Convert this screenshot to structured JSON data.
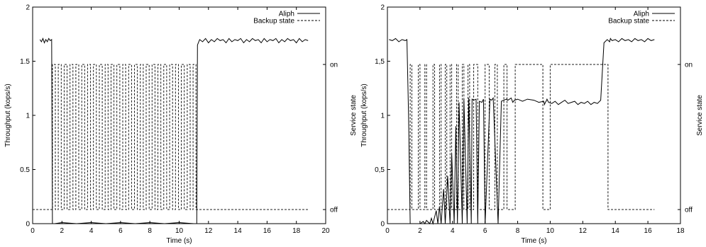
{
  "chart_data": [
    {
      "type": "line",
      "title": "",
      "xlabel": "Time (s)",
      "ylabel": "Throughput (kops/s)",
      "y2label": "Service state",
      "xlim": [
        0,
        20
      ],
      "ylim": [
        0,
        2
      ],
      "xticks": [
        0,
        2,
        4,
        6,
        8,
        10,
        12,
        14,
        16,
        18,
        20
      ],
      "yticks": [
        0,
        0.5,
        1,
        1.5,
        2
      ],
      "ytick_labels": [
        "0",
        "0.5",
        "1",
        "1.5",
        "2"
      ],
      "y2ticks": [
        {
          "label": "on",
          "y": 1.47
        },
        {
          "label": "off",
          "y": 0.13
        }
      ],
      "legend_position": "top-right",
      "series": [
        {
          "name": "Aliph",
          "style": "solid",
          "x": [
            0.5,
            0.6,
            0.7,
            0.8,
            0.9,
            1.0,
            1.1,
            1.2,
            1.3,
            1.35,
            1.5,
            2.0,
            3.0,
            4.0,
            5.0,
            6.0,
            7.0,
            8.0,
            9.0,
            10.0,
            11.0,
            11.2,
            11.25,
            11.4,
            11.6,
            11.8,
            12.0,
            12.2,
            12.4,
            12.6,
            12.8,
            13.0,
            13.2,
            13.4,
            13.6,
            13.8,
            14.0,
            14.2,
            14.4,
            14.6,
            14.8,
            15.0,
            15.2,
            15.4,
            15.6,
            15.8,
            16.0,
            16.2,
            16.4,
            16.6,
            16.8,
            17.0,
            17.2,
            17.4,
            17.6,
            17.8,
            18.0,
            18.2,
            18.4,
            18.6,
            18.8
          ],
          "y": [
            1.7,
            1.68,
            1.71,
            1.67,
            1.7,
            1.68,
            1.71,
            1.69,
            1.7,
            0.0,
            0.0,
            0.01,
            0.0,
            0.01,
            0.0,
            0.01,
            0.0,
            0.01,
            0.0,
            0.01,
            0.0,
            0.0,
            1.65,
            1.7,
            1.68,
            1.71,
            1.67,
            1.7,
            1.68,
            1.71,
            1.69,
            1.7,
            1.67,
            1.71,
            1.68,
            1.7,
            1.69,
            1.71,
            1.67,
            1.7,
            1.68,
            1.71,
            1.69,
            1.7,
            1.67,
            1.71,
            1.68,
            1.7,
            1.69,
            1.71,
            1.67,
            1.7,
            1.68,
            1.71,
            1.69,
            1.7,
            1.67,
            1.71,
            1.68,
            1.7,
            1.69
          ]
        },
        {
          "name": "Backup state",
          "style": "dashed",
          "on_intervals": [
            [
              1.35,
              1.55
            ],
            [
              1.75,
              1.95
            ],
            [
              2.15,
              2.35
            ],
            [
              2.55,
              2.75
            ],
            [
              2.95,
              3.15
            ],
            [
              3.35,
              3.55
            ],
            [
              3.75,
              3.95
            ],
            [
              4.15,
              4.35
            ],
            [
              4.55,
              4.75
            ],
            [
              4.95,
              5.15
            ],
            [
              5.35,
              5.55
            ],
            [
              5.75,
              5.95
            ],
            [
              6.15,
              6.35
            ],
            [
              6.55,
              6.75
            ],
            [
              6.95,
              7.15
            ],
            [
              7.35,
              7.55
            ],
            [
              7.75,
              7.95
            ],
            [
              8.15,
              8.35
            ],
            [
              8.55,
              8.75
            ],
            [
              8.95,
              9.15
            ],
            [
              9.35,
              9.55
            ],
            [
              9.75,
              9.95
            ],
            [
              10.15,
              10.35
            ],
            [
              10.55,
              10.75
            ],
            [
              10.95,
              11.15
            ]
          ],
          "x_start": 0,
          "x_end": 18.8
        }
      ]
    },
    {
      "type": "line",
      "title": "",
      "xlabel": "Time (s)",
      "ylabel": "Throughput (kops/s)",
      "y2label": "Service state",
      "xlim": [
        0,
        18
      ],
      "ylim": [
        0,
        2
      ],
      "xticks": [
        0,
        2,
        4,
        6,
        8,
        10,
        12,
        14,
        16,
        18
      ],
      "yticks": [
        0,
        0.5,
        1,
        1.5,
        2
      ],
      "ytick_labels": [
        "0",
        "0,5",
        "1",
        "1,5",
        "2"
      ],
      "y2ticks": [
        {
          "label": "on",
          "y": 1.47
        },
        {
          "label": "off",
          "y": 0.13
        }
      ],
      "legend_position": "top-right",
      "series": [
        {
          "name": "Aliph",
          "style": "solid",
          "x": [
            0.1,
            0.3,
            0.5,
            0.7,
            0.9,
            1.1,
            1.2,
            1.3,
            1.4,
            2.0,
            2.2,
            2.3,
            2.4,
            2.6,
            2.7,
            2.8,
            3.0,
            3.1,
            3.2,
            3.3,
            3.45,
            3.55,
            3.7,
            3.85,
            3.95,
            4.1,
            4.2,
            4.3,
            4.4,
            4.6,
            4.7,
            4.9,
            5.0,
            5.15,
            5.2,
            5.3,
            5.45,
            5.55,
            5.65,
            5.8,
            5.9,
            6.0,
            6.3,
            6.4,
            6.5,
            6.8,
            7.0,
            7.3,
            7.4,
            7.6,
            7.7,
            7.8,
            8.0,
            8.3,
            8.6,
            9.0,
            9.3,
            9.6,
            9.65,
            9.7,
            9.75,
            9.8,
            9.9,
            10.1,
            10.3,
            10.5,
            10.7,
            10.9,
            11.1,
            11.3,
            11.5,
            11.7,
            11.9,
            12.1,
            12.3,
            12.5,
            12.7,
            12.9,
            13.1,
            13.3,
            13.5,
            13.65,
            13.7,
            13.8,
            14.0,
            14.2,
            14.4,
            14.6,
            14.8,
            15.0,
            15.2,
            15.4,
            15.6,
            15.8,
            16.0,
            16.2,
            16.4
          ],
          "y": [
            1.7,
            1.69,
            1.71,
            1.68,
            1.7,
            1.69,
            1.7,
            1.0,
            0.0,
            0.0,
            0.02,
            0.0,
            0.03,
            0.0,
            0.05,
            0.0,
            0.12,
            0.0,
            0.16,
            0.0,
            0.32,
            0.0,
            0.44,
            0.0,
            0.65,
            0.0,
            0.9,
            0.0,
            1.12,
            0.0,
            1.15,
            0.0,
            1.16,
            0.0,
            1.15,
            1.14,
            1.15,
            0.0,
            1.13,
            1.12,
            1.15,
            0.0,
            1.15,
            1.14,
            1.16,
            0.0,
            1.13,
            1.15,
            1.14,
            1.16,
            1.12,
            1.14,
            1.15,
            1.13,
            1.15,
            1.14,
            1.12,
            1.13,
            1.1,
            1.12,
            1.13,
            1.15,
            1.12,
            1.11,
            1.13,
            1.1,
            1.12,
            1.14,
            1.11,
            1.12,
            1.13,
            1.1,
            1.12,
            1.11,
            1.13,
            1.1,
            1.12,
            1.11,
            1.14,
            1.67,
            1.7,
            1.68,
            1.71,
            1.69,
            1.7,
            1.68,
            1.71,
            1.69,
            1.7,
            1.68,
            1.71,
            1.69,
            1.7,
            1.68,
            1.71,
            1.69,
            1.7
          ],
          "x_gaps_note": ""
        },
        {
          "name": "Backup state",
          "style": "dashed",
          "on_intervals": [
            [
              1.4,
              1.5
            ],
            [
              1.9,
              2.0
            ],
            [
              2.3,
              2.4
            ],
            [
              2.8,
              2.9
            ],
            [
              3.2,
              3.3
            ],
            [
              3.55,
              3.65
            ],
            [
              3.85,
              3.95
            ],
            [
              4.25,
              4.35
            ],
            [
              4.6,
              4.7
            ],
            [
              4.95,
              5.05
            ],
            [
              5.3,
              5.55
            ],
            [
              6.0,
              6.25
            ],
            [
              6.6,
              6.75
            ],
            [
              7.15,
              7.35
            ],
            [
              7.85,
              9.55
            ],
            [
              10.0,
              13.55
            ]
          ],
          "x_start": 0,
          "x_end": 16.4
        }
      ]
    }
  ]
}
